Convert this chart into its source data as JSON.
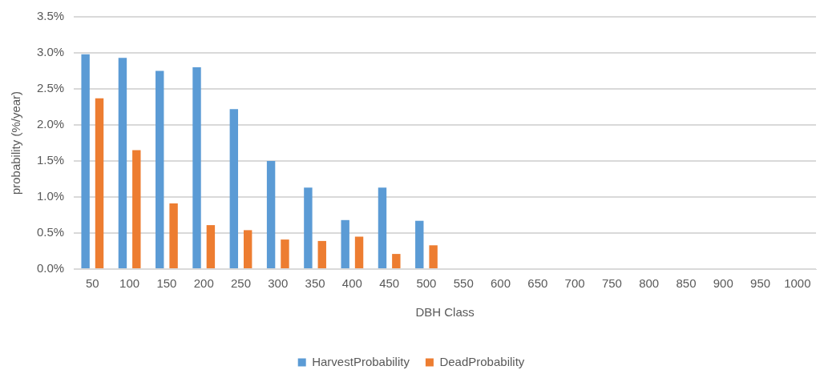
{
  "chart_data": {
    "type": "bar",
    "xlabel": "DBH Class",
    "ylabel": "probability (%/year)",
    "categories": [
      "50",
      "100",
      "150",
      "200",
      "250",
      "300",
      "350",
      "400",
      "450",
      "500",
      "550",
      "600",
      "650",
      "700",
      "750",
      "800",
      "850",
      "900",
      "950",
      "1000"
    ],
    "series": [
      {
        "name": "HarvestProbability",
        "color": "#5b9bd5",
        "values": [
          2.98,
          2.93,
          2.75,
          2.8,
          2.22,
          1.5,
          1.13,
          0.68,
          1.13,
          0.67,
          0,
          0,
          0,
          0,
          0,
          0,
          0,
          0,
          0,
          0
        ]
      },
      {
        "name": "DeadProbability",
        "color": "#ed7d31",
        "values": [
          2.37,
          1.65,
          0.91,
          0.61,
          0.54,
          0.41,
          0.39,
          0.45,
          0.21,
          0.33,
          0,
          0,
          0,
          0,
          0,
          0,
          0,
          0,
          0,
          0
        ]
      }
    ],
    "ylim": [
      0,
      3.5
    ],
    "yticks": [
      {
        "value": 0,
        "label": "0.0%"
      },
      {
        "value": 0.5,
        "label": "0.5%"
      },
      {
        "value": 1,
        "label": "1.0%"
      },
      {
        "value": 1.5,
        "label": "1.5%"
      },
      {
        "value": 2,
        "label": "2.0%"
      },
      {
        "value": 2.5,
        "label": "2.5%"
      },
      {
        "value": 3,
        "label": "3.0%"
      },
      {
        "value": 3.5,
        "label": "3.5%"
      }
    ],
    "grid": "y",
    "legend": "bottom"
  }
}
